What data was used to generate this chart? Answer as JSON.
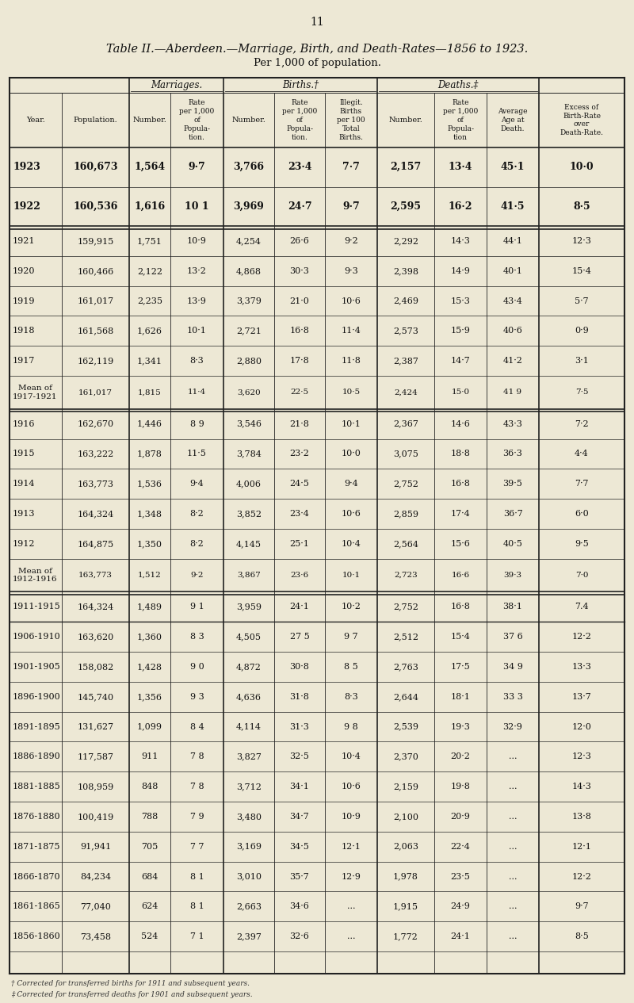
{
  "page_number": "11",
  "title_line1": "Table II.—Aberdeen.—Marriage, Birth, and Death-Rates—1856 to 1923.",
  "title_line2": "Per 1,000 of population.",
  "bg_color": "#ede8d5",
  "rows": [
    [
      "1923",
      "160,673",
      "1,564",
      "9·7",
      "3,766",
      "23·4",
      "7·7",
      "2,157",
      "13·4",
      "45·1",
      "10·0"
    ],
    [
      "1922",
      "160,536",
      "1,616",
      "10 1",
      "3,969",
      "24·7",
      "9·7",
      "2,595",
      "16·2",
      "41·5",
      "8·5"
    ],
    [
      "1921",
      "159,915",
      "1,751",
      "10·9",
      "4,254",
      "26·6",
      "9·2",
      "2,292",
      "14·3",
      "44·1",
      "12·3"
    ],
    [
      "1920",
      "160,466",
      "2,122",
      "13·2",
      "4,868",
      "30·3",
      "9·3",
      "2,398",
      "14·9",
      "40·1",
      "15·4"
    ],
    [
      "1919",
      "161,017",
      "2,235",
      "13·9",
      "3,379",
      "21·0",
      "10·6",
      "2,469",
      "15·3",
      "43·4",
      "5·7"
    ],
    [
      "1918",
      "161,568",
      "1,626",
      "10·1",
      "2,721",
      "16·8",
      "11·4",
      "2,573",
      "15·9",
      "40·6",
      "0·9"
    ],
    [
      "1917",
      "162,119",
      "1,341",
      "8·3",
      "2,880",
      "17·8",
      "11·8",
      "2,387",
      "14·7",
      "41·2",
      "3·1"
    ],
    [
      "Mean of\n1917-1921",
      "161,017",
      "1,815",
      "11·4",
      "3,620",
      "22·5",
      "10·5",
      "2,424",
      "15·0",
      "41 9",
      "7·5"
    ],
    [
      "1916",
      "162,670",
      "1,446",
      "8 9",
      "3,546",
      "21·8",
      "10·1",
      "2,367",
      "14·6",
      "43·3",
      "7·2"
    ],
    [
      "1915",
      "163,222",
      "1,878",
      "11·5",
      "3,784",
      "23·2",
      "10·0",
      "3,075",
      "18·8",
      "36·3",
      "4·4"
    ],
    [
      "1914",
      "163,773",
      "1,536",
      "9·4",
      "4,006",
      "24·5",
      "9·4",
      "2,752",
      "16·8",
      "39·5",
      "7·7"
    ],
    [
      "1913",
      "164,324",
      "1,348",
      "8·2",
      "3,852",
      "23·4",
      "10·6",
      "2,859",
      "17·4",
      "36·7",
      "6·0"
    ],
    [
      "1912",
      "164,875",
      "1,350",
      "8·2",
      "4,145",
      "25·1",
      "10·4",
      "2,564",
      "15·6",
      "40·5",
      "9·5"
    ],
    [
      "Mean of\n1912-1916",
      "163,773",
      "1,512",
      "9·2",
      "3,867",
      "23·6",
      "10·1",
      "2,723",
      "16·6",
      "39·3",
      "7·0"
    ],
    [
      "1911-1915",
      "164,324",
      "1,489",
      "9 1",
      "3,959",
      "24·1",
      "10·2",
      "2,752",
      "16·8",
      "38·1",
      "7.4"
    ],
    [
      "1906-1910",
      "163,620",
      "1,360",
      "8 3",
      "4,505",
      "27 5",
      "9 7",
      "2,512",
      "15·4",
      "37 6",
      "12·2"
    ],
    [
      "1901-1905",
      "158,082",
      "1,428",
      "9 0",
      "4,872",
      "30·8",
      "8 5",
      "2,763",
      "17·5",
      "34 9",
      "13·3"
    ],
    [
      "1896-1900",
      "145,740",
      "1,356",
      "9 3",
      "4,636",
      "31·8",
      "8·3",
      "2,644",
      "18·1",
      "33 3",
      "13·7"
    ],
    [
      "1891-1895",
      "131,627",
      "1,099",
      "8 4",
      "4,114",
      "31·3",
      "9 8",
      "2,539",
      "19·3",
      "32·9",
      "12·0"
    ],
    [
      "1886-1890",
      "117,587",
      "911",
      "7 8",
      "3,827",
      "32·5",
      "10·4",
      "2,370",
      "20·2",
      "...",
      "12·3"
    ],
    [
      "1881-1885",
      "108,959",
      "848",
      "7 8",
      "3,712",
      "34·1",
      "10·6",
      "2,159",
      "19·8",
      "...",
      "14·3"
    ],
    [
      "1876-1880",
      "100,419",
      "788",
      "7 9",
      "3,480",
      "34·7",
      "10·9",
      "2,100",
      "20·9",
      "...",
      "13·8"
    ],
    [
      "1871-1875",
      "91,941",
      "705",
      "7 7",
      "3,169",
      "34·5",
      "12·1",
      "2,063",
      "22·4",
      "...",
      "12·1"
    ],
    [
      "1866-1870",
      "84,234",
      "684",
      "8 1",
      "3,010",
      "35·7",
      "12·9",
      "1,978",
      "23·5",
      "...",
      "12·2"
    ],
    [
      "1861-1865",
      "77,040",
      "624",
      "8 1",
      "2,663",
      "34·6",
      "...",
      "1,915",
      "24·9",
      "...",
      "9·7"
    ],
    [
      "1856-1860",
      "73,458",
      "524",
      "7 1",
      "2,397",
      "32·6",
      "...",
      "1,772",
      "24·1",
      "...",
      "8·5"
    ]
  ],
  "footnote1": "† Corrected for transferred births for 1911 and subsequent years.",
  "footnote2": "‡ Corrected for transferred deaths for 1901 and subsequent years."
}
